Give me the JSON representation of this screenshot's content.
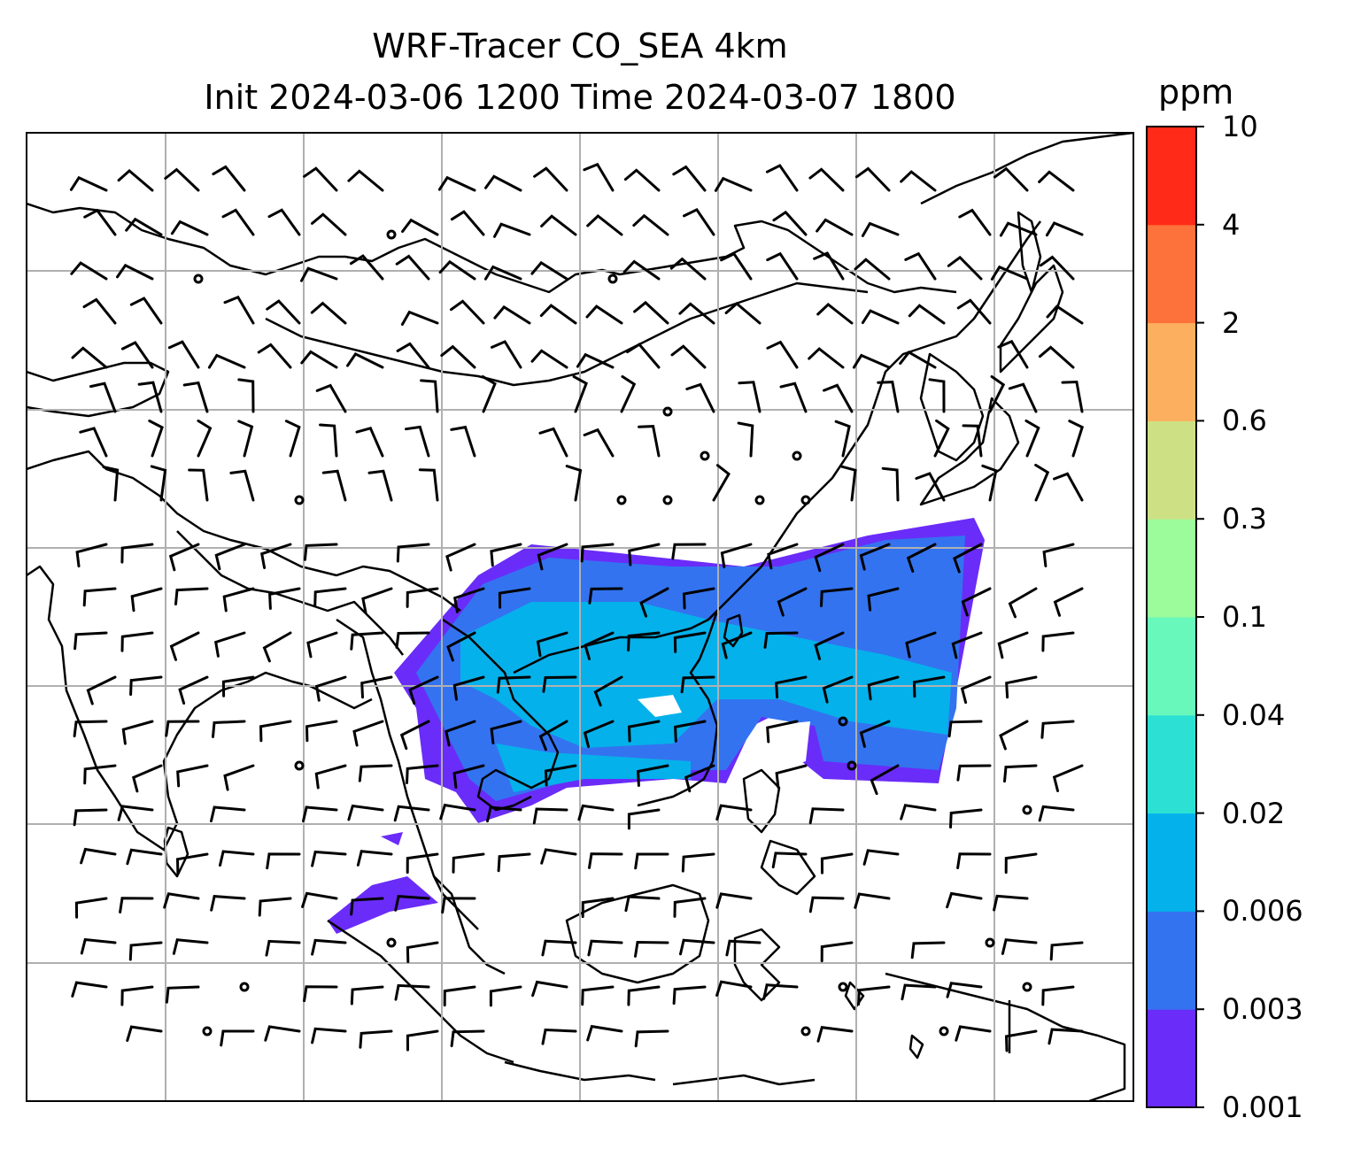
{
  "title_line1": "WRF-Tracer CO_SEA 4km",
  "title_line2": "Init 2024-03-06 1200 Time 2024-03-07 1800",
  "colorbar": {
    "unit": "ppm",
    "levels": [
      "0.001",
      "0.003",
      "0.006",
      "0.02",
      "0.04",
      "0.1",
      "0.3",
      "0.6",
      "2",
      "4",
      "10"
    ],
    "colors": [
      "#6a2cf8",
      "#3373f0",
      "#05b1ea",
      "#2de0d4",
      "#68f8bc",
      "#9cfb9b",
      "#cde084",
      "#fcb05f",
      "#fd713a",
      "#ff2b18"
    ]
  },
  "map": {
    "gridline_color": "#b0b0b0",
    "coastline_color": "#000000",
    "wind_barbs": "black",
    "plume_colors": {
      "outer": "#6a2cf8",
      "mid": "#3373f0",
      "inner": "#05b1ea"
    }
  }
}
